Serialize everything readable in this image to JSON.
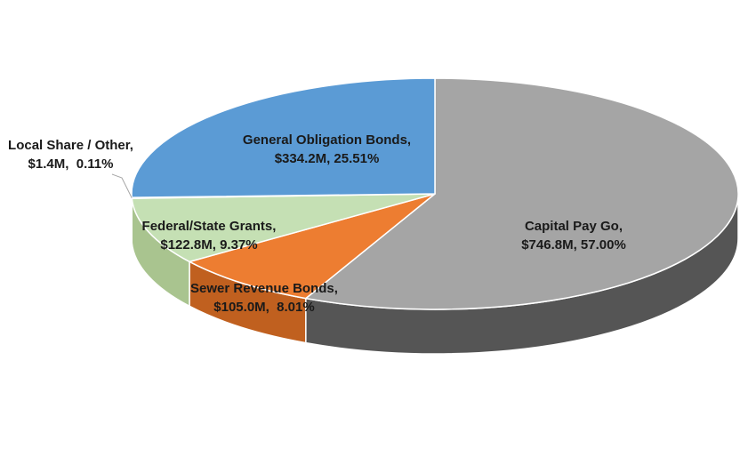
{
  "chart_data": {
    "type": "pie",
    "style": "3d",
    "slices": [
      {
        "label": "Capital Pay Go,",
        "amount": "$746.8M",
        "percent": "57.00%",
        "value": 57.0,
        "color": "#a5a5a5"
      },
      {
        "label": "Sewer Revenue Bonds,",
        "amount": "$105.0M",
        "percent": "8.01%",
        "value": 8.01,
        "color": "#ed7d31"
      },
      {
        "label": "Federal/State Grants,",
        "amount": "$122.8M",
        "percent": "9.37%",
        "value": 9.37,
        "color": "#c5e0b4"
      },
      {
        "label": "Local Share / Other,",
        "amount": "$1.4M",
        "percent": "0.11%",
        "value": 0.11,
        "color": "#5b9bd5"
      },
      {
        "label": "General Obligation Bonds,",
        "amount": "$334.2M",
        "percent": "25.51%",
        "value": 25.51,
        "color": "#5b9bd5"
      }
    ],
    "side_colors": [
      "#555555",
      "#c0601f",
      "#a9c48f",
      "#4a7fb0",
      "#4a7fb0"
    ],
    "legend": "none",
    "grid": false
  }
}
